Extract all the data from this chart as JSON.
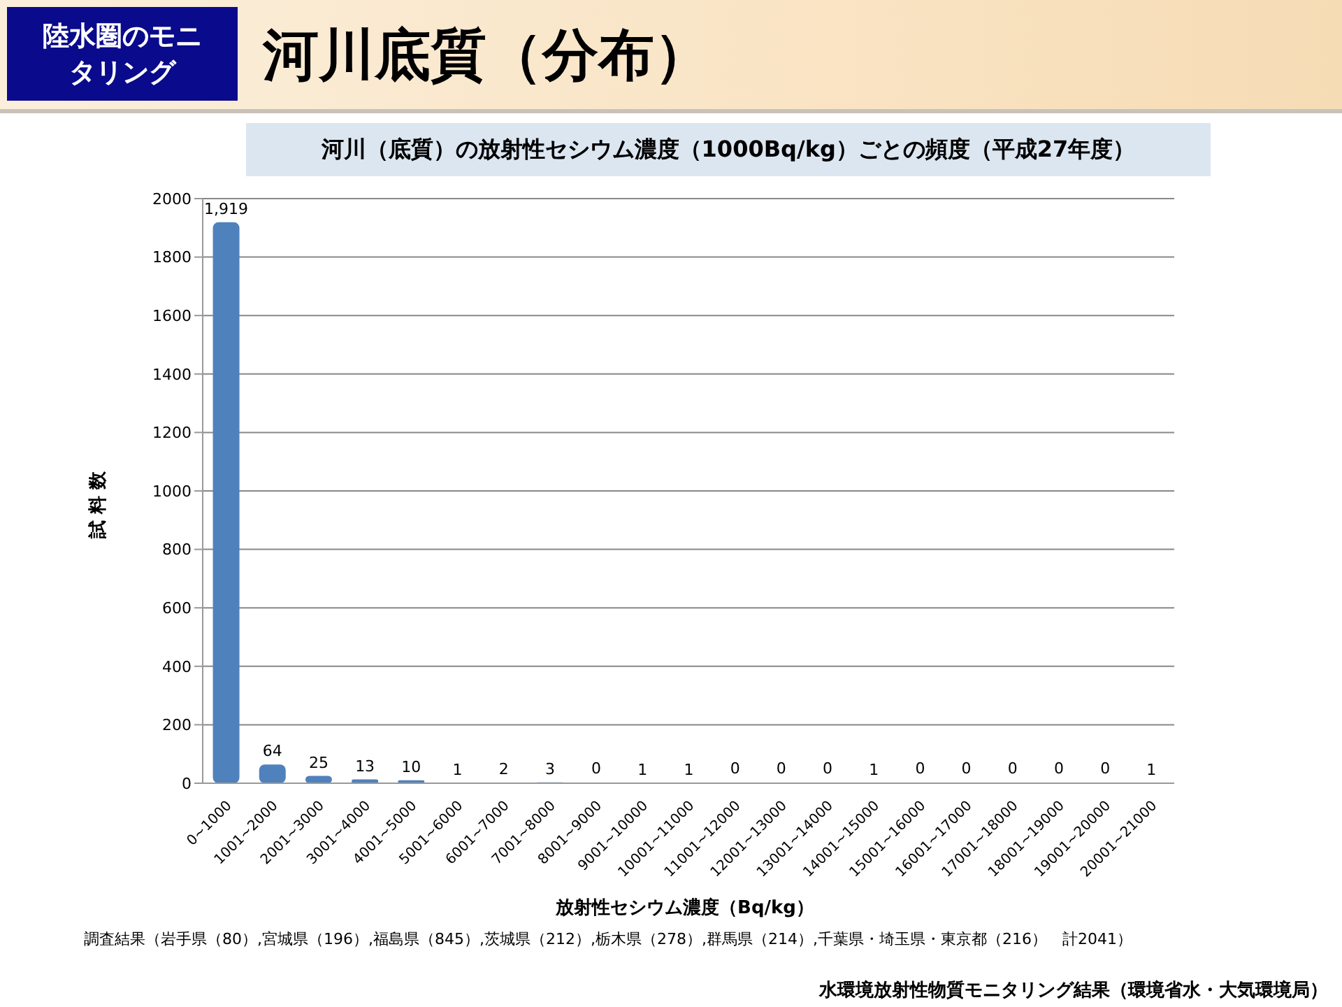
{
  "chart_data": {
    "type": "bar",
    "title": "河川底質（分布）",
    "subtitle": "河川（底質）の放射性セシウム濃度（1000Bq/kg）ごとの頻度（平成27年度）",
    "xlabel": "放射性セシウム濃度（Bq/kg）",
    "ylabel": "試 料 数",
    "annotations": [
      "陸水圏のモニタリング",
      "調査結果（岩手県（80）,宮城県（196）,福島県（845）,茨城県（212）,栃木県（278）,群馬県（214）,千葉県・埼玉県・東京都（216）　計2041）",
      "水環境放射性物質モニタリング結果（環境省水・大気環境局）"
    ],
    "categories": [
      "0~1000",
      "1001~2000",
      "2001~3000",
      "3001~4000",
      "4001~5000",
      "5001~6000",
      "6001~7000",
      "7001~8000",
      "8001~9000",
      "9001~10000",
      "10001~11000",
      "11001~12000",
      "12001~13000",
      "13001~14000",
      "14001~15000",
      "15001~16000",
      "16001~17000",
      "17001~18000",
      "18001~19000",
      "19001~20000",
      "20001~21000"
    ],
    "values": [
      1919,
      64,
      25,
      13,
      10,
      1,
      2,
      3,
      0,
      1,
      1,
      0,
      0,
      0,
      1,
      0,
      0,
      0,
      0,
      0,
      1
    ],
    "value_labels": [
      "1,919",
      "64",
      "25",
      "13",
      "10",
      "1",
      "2",
      "3",
      "0",
      "1",
      "1",
      "0",
      "0",
      "0",
      "1",
      "0",
      "0",
      "0",
      "0",
      "0",
      "1"
    ],
    "color": "#4f81bd",
    "ylim": [
      0,
      2000
    ],
    "yticks": [
      0,
      200,
      400,
      600,
      800,
      1000,
      1200,
      1400,
      1600,
      1800,
      2000
    ],
    "grid": "y",
    "legend": false
  }
}
